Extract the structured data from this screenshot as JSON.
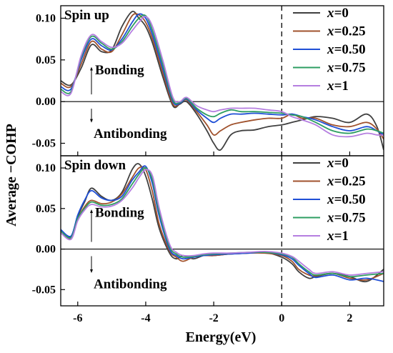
{
  "chart_data": {
    "type": "line",
    "xlabel": "Energy(eV)",
    "ylabel": "Average −COHP",
    "xlim": [
      -6.5,
      3
    ],
    "xticks": [
      -6,
      -4,
      -2,
      0,
      2
    ],
    "fermi_level": 0,
    "legend_location": "top-right",
    "series_meta": [
      {
        "var": "x",
        "value": "0",
        "color": "#404040"
      },
      {
        "var": "x",
        "value": "0.25",
        "color": "#a0522d"
      },
      {
        "var": "x",
        "value": "0.50",
        "color": "#1f4fd6"
      },
      {
        "var": "x",
        "value": "0.75",
        "color": "#2e9e62"
      },
      {
        "var": "x",
        "value": "1",
        "color": "#b57ee0"
      }
    ],
    "panels": [
      {
        "label": "Spin up",
        "ylim": [
          -0.065,
          0.115
        ],
        "yticks": [
          -0.05,
          0.0,
          0.05,
          0.1
        ],
        "ytick_labels": [
          "-0.05",
          "0.00",
          "0.05",
          "0.10"
        ],
        "bonding_label": "Bonding",
        "antibonding_label": "Antibonding",
        "series": [
          {
            "x": [
              -6.5,
              -6.2,
              -5.9,
              -5.6,
              -5.3,
              -5.0,
              -4.7,
              -4.4,
              -4.2,
              -4.0,
              -3.8,
              -3.5,
              -3.2,
              -3.0,
              -2.8,
              -2.5,
              -2.2,
              -2.0,
              -1.8,
              -1.5,
              -1.2,
              -0.8,
              -0.4,
              0.0,
              0.3,
              0.6,
              1.0,
              1.5,
              2.0,
              2.5,
              2.8,
              3.0
            ],
            "y": [
              0.025,
              0.02,
              0.04,
              0.068,
              0.06,
              0.062,
              0.09,
              0.108,
              0.1,
              0.09,
              0.07,
              0.03,
              -0.005,
              -0.003,
              0.0,
              -0.015,
              -0.035,
              -0.05,
              -0.058,
              -0.04,
              -0.035,
              -0.034,
              -0.03,
              -0.028,
              -0.025,
              -0.022,
              -0.018,
              -0.02,
              -0.025,
              -0.015,
              -0.03,
              -0.058
            ]
          },
          {
            "x": [
              -6.5,
              -6.2,
              -5.9,
              -5.6,
              -5.3,
              -5.0,
              -4.7,
              -4.4,
              -4.2,
              -4.0,
              -3.8,
              -3.5,
              -3.2,
              -3.0,
              -2.8,
              -2.5,
              -2.2,
              -2.0,
              -1.8,
              -1.5,
              -1.2,
              -0.8,
              -0.4,
              0.0,
              0.3,
              0.6,
              1.0,
              1.5,
              2.0,
              2.5,
              2.8,
              3.0
            ],
            "y": [
              0.022,
              0.018,
              0.045,
              0.072,
              0.063,
              0.06,
              0.08,
              0.103,
              0.104,
              0.095,
              0.075,
              0.035,
              -0.003,
              -0.002,
              0.002,
              -0.012,
              -0.028,
              -0.04,
              -0.035,
              -0.028,
              -0.025,
              -0.022,
              -0.02,
              -0.02,
              -0.015,
              -0.02,
              -0.02,
              -0.028,
              -0.03,
              -0.025,
              -0.033,
              -0.045
            ]
          },
          {
            "x": [
              -6.5,
              -6.2,
              -5.9,
              -5.6,
              -5.3,
              -5.0,
              -4.7,
              -4.4,
              -4.2,
              -4.0,
              -3.8,
              -3.5,
              -3.2,
              -3.0,
              -2.8,
              -2.5,
              -2.2,
              -2.0,
              -1.8,
              -1.5,
              -1.2,
              -0.8,
              -0.4,
              0.0,
              0.3,
              0.6,
              1.0,
              1.5,
              2.0,
              2.5,
              2.8,
              3.0
            ],
            "y": [
              0.018,
              0.015,
              0.05,
              0.075,
              0.067,
              0.062,
              0.075,
              0.095,
              0.105,
              0.1,
              0.08,
              0.04,
              0.0,
              -0.002,
              0.003,
              -0.01,
              -0.02,
              -0.025,
              -0.02,
              -0.015,
              -0.015,
              -0.014,
              -0.015,
              -0.016,
              -0.015,
              -0.018,
              -0.022,
              -0.03,
              -0.035,
              -0.03,
              -0.035,
              -0.04
            ]
          },
          {
            "x": [
              -6.5,
              -6.2,
              -5.9,
              -5.6,
              -5.3,
              -5.0,
              -4.7,
              -4.4,
              -4.2,
              -4.0,
              -3.8,
              -3.5,
              -3.2,
              -3.0,
              -2.8,
              -2.5,
              -2.2,
              -2.0,
              -1.8,
              -1.5,
              -1.2,
              -0.8,
              -0.4,
              0.0,
              0.3,
              0.6,
              1.0,
              1.5,
              2.0,
              2.5,
              2.8,
              3.0
            ],
            "y": [
              0.015,
              0.012,
              0.053,
              0.078,
              0.07,
              0.063,
              0.072,
              0.09,
              0.1,
              0.103,
              0.085,
              0.045,
              0.002,
              -0.001,
              0.004,
              -0.008,
              -0.016,
              -0.018,
              -0.014,
              -0.01,
              -0.012,
              -0.012,
              -0.013,
              -0.014,
              -0.016,
              -0.018,
              -0.025,
              -0.035,
              -0.038,
              -0.033,
              -0.035,
              -0.038
            ]
          },
          {
            "x": [
              -6.5,
              -6.2,
              -5.9,
              -5.6,
              -5.3,
              -5.0,
              -4.7,
              -4.4,
              -4.2,
              -4.0,
              -3.8,
              -3.5,
              -3.2,
              -3.0,
              -2.8,
              -2.5,
              -2.2,
              -2.0,
              -1.8,
              -1.5,
              -1.2,
              -0.8,
              -0.4,
              0.0,
              0.3,
              0.6,
              1.0,
              1.5,
              2.0,
              2.5,
              2.8,
              3.0
            ],
            "y": [
              0.012,
              0.01,
              0.055,
              0.08,
              0.072,
              0.065,
              0.07,
              0.085,
              0.095,
              0.102,
              0.09,
              0.05,
              0.005,
              0.0,
              0.005,
              -0.005,
              -0.01,
              -0.012,
              -0.01,
              -0.008,
              -0.008,
              -0.008,
              -0.01,
              -0.012,
              -0.018,
              -0.022,
              -0.028,
              -0.04,
              -0.042,
              -0.038,
              -0.04,
              -0.04
            ]
          }
        ]
      },
      {
        "label": "Spin down",
        "ylim": [
          -0.07,
          0.115
        ],
        "yticks": [
          -0.05,
          0.0,
          0.05,
          0.1
        ],
        "ytick_labels": [
          "-0.05",
          "0.00",
          "0.05",
          "0.10"
        ],
        "bonding_label": "Bonding",
        "antibonding_label": "Antibonding",
        "series": [
          {
            "x": [
              -6.5,
              -6.2,
              -6.0,
              -5.8,
              -5.6,
              -5.3,
              -5.0,
              -4.7,
              -4.4,
              -4.2,
              -4.0,
              -3.8,
              -3.6,
              -3.3,
              -3.1,
              -2.9,
              -2.6,
              -2.3,
              -2.0,
              -1.5,
              -1.0,
              -0.5,
              0.0,
              0.3,
              0.5,
              0.8,
              1.0,
              1.5,
              2.0,
              2.5,
              3.0
            ],
            "y": [
              0.022,
              0.015,
              0.04,
              0.058,
              0.075,
              0.065,
              0.06,
              0.07,
              0.098,
              0.105,
              0.09,
              0.06,
              0.025,
              -0.005,
              -0.012,
              -0.008,
              -0.012,
              -0.008,
              -0.008,
              -0.006,
              -0.005,
              -0.004,
              -0.01,
              -0.018,
              -0.028,
              -0.036,
              -0.034,
              -0.03,
              -0.034,
              -0.04,
              -0.025
            ]
          },
          {
            "x": [
              -6.5,
              -6.2,
              -6.0,
              -5.8,
              -5.6,
              -5.3,
              -5.0,
              -4.7,
              -4.4,
              -4.2,
              -4.0,
              -3.8,
              -3.6,
              -3.3,
              -3.1,
              -2.9,
              -2.6,
              -2.3,
              -2.0,
              -1.5,
              -1.0,
              -0.5,
              0.0,
              0.3,
              0.5,
              0.8,
              1.0,
              1.5,
              2.0,
              2.5,
              3.0
            ],
            "y": [
              0.02,
              0.013,
              0.037,
              0.052,
              0.06,
              0.056,
              0.058,
              0.068,
              0.088,
              0.1,
              0.098,
              0.07,
              0.03,
              -0.002,
              -0.01,
              -0.015,
              -0.01,
              -0.008,
              -0.008,
              -0.006,
              -0.005,
              -0.005,
              -0.008,
              -0.015,
              -0.025,
              -0.032,
              -0.033,
              -0.03,
              -0.036,
              -0.038,
              -0.03
            ]
          },
          {
            "x": [
              -6.5,
              -6.2,
              -6.0,
              -5.8,
              -5.6,
              -5.3,
              -5.0,
              -4.7,
              -4.4,
              -4.2,
              -4.0,
              -3.8,
              -3.6,
              -3.3,
              -3.1,
              -2.9,
              -2.6,
              -2.3,
              -2.0,
              -1.5,
              -1.0,
              -0.5,
              0.0,
              0.3,
              0.5,
              0.8,
              1.0,
              1.5,
              2.0,
              2.5,
              3.0
            ],
            "y": [
              0.024,
              0.016,
              0.042,
              0.06,
              0.072,
              0.063,
              0.06,
              0.065,
              0.085,
              0.095,
              0.102,
              0.08,
              0.04,
              0.0,
              -0.008,
              -0.012,
              -0.01,
              -0.008,
              -0.007,
              -0.006,
              -0.005,
              -0.004,
              -0.007,
              -0.012,
              -0.02,
              -0.03,
              -0.035,
              -0.032,
              -0.038,
              -0.036,
              -0.04
            ]
          },
          {
            "x": [
              -6.5,
              -6.2,
              -6.0,
              -5.8,
              -5.6,
              -5.3,
              -5.0,
              -4.7,
              -4.4,
              -4.2,
              -4.0,
              -3.8,
              -3.6,
              -3.3,
              -3.1,
              -2.9,
              -2.6,
              -2.3,
              -2.0,
              -1.5,
              -1.0,
              -0.5,
              0.0,
              0.3,
              0.5,
              0.8,
              1.0,
              1.5,
              2.0,
              2.5,
              3.0
            ],
            "y": [
              0.022,
              0.014,
              0.038,
              0.05,
              0.058,
              0.054,
              0.055,
              0.062,
              0.08,
              0.092,
              0.1,
              0.085,
              0.045,
              0.003,
              -0.006,
              -0.01,
              -0.009,
              -0.007,
              -0.006,
              -0.005,
              -0.004,
              -0.004,
              -0.006,
              -0.01,
              -0.018,
              -0.028,
              -0.032,
              -0.03,
              -0.034,
              -0.032,
              -0.03
            ]
          },
          {
            "x": [
              -6.5,
              -6.2,
              -6.0,
              -5.8,
              -5.6,
              -5.3,
              -5.0,
              -4.7,
              -4.4,
              -4.2,
              -4.0,
              -3.8,
              -3.6,
              -3.3,
              -3.1,
              -2.9,
              -2.6,
              -2.3,
              -2.0,
              -1.5,
              -1.0,
              -0.5,
              0.0,
              0.3,
              0.5,
              0.8,
              1.0,
              1.5,
              2.0,
              2.5,
              3.0
            ],
            "y": [
              0.02,
              0.012,
              0.035,
              0.048,
              0.055,
              0.052,
              0.053,
              0.06,
              0.075,
              0.088,
              0.098,
              0.09,
              0.05,
              0.006,
              -0.004,
              -0.008,
              -0.008,
              -0.006,
              -0.005,
              -0.005,
              -0.004,
              -0.003,
              -0.005,
              -0.009,
              -0.015,
              -0.025,
              -0.03,
              -0.028,
              -0.032,
              -0.03,
              -0.028
            ]
          }
        ]
      }
    ]
  }
}
